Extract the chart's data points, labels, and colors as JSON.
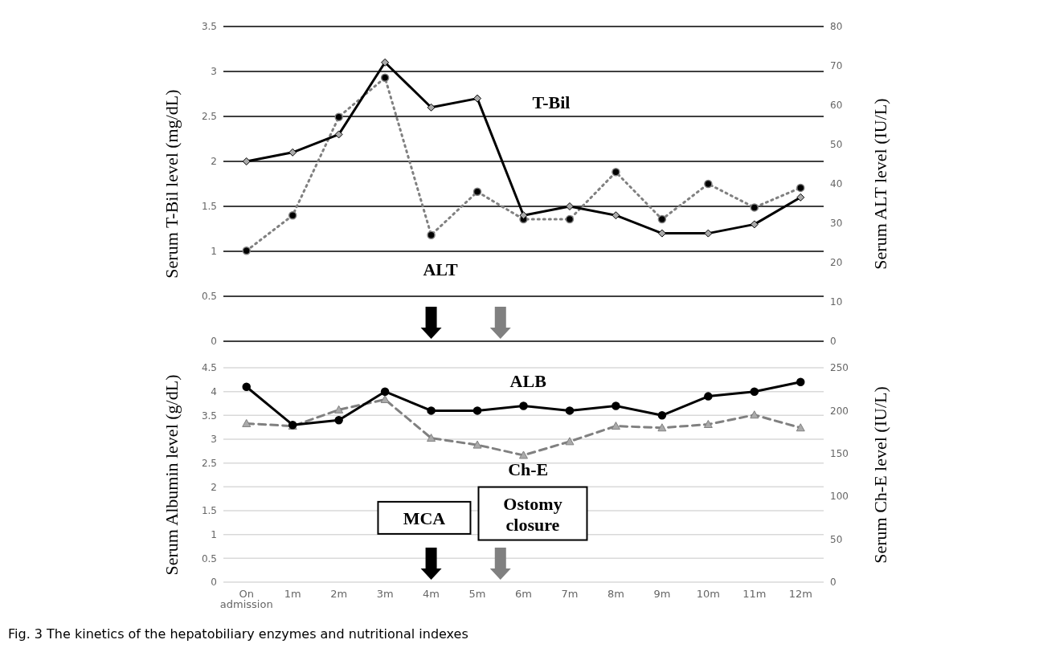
{
  "chart_data": [
    {
      "type": "line",
      "categories": [
        null,
        null,
        null,
        null,
        null,
        null,
        null,
        null,
        null,
        null,
        null,
        null,
        null
      ],
      "series": [
        {
          "name": "T-Bil",
          "color": "#000000",
          "marker": "diamond",
          "line_style": "solid",
          "values": [
            2,
            2.1,
            2.3,
            3.1,
            2.6,
            2.7,
            1.4,
            1.5,
            1.4,
            1.2,
            1.2,
            1.3,
            1.6
          ]
        },
        {
          "name": "ALT",
          "color": "#808080",
          "marker": "circle",
          "line_style": "dotted",
          "axis": "y2",
          "values": [
            23,
            32,
            57,
            67,
            27,
            38,
            31,
            31,
            43,
            31,
            40,
            34,
            39
          ]
        }
      ],
      "ylabel": "Serum T-Bil level (mg/dL)",
      "y2label": "Serum ALT level (IU/L)",
      "ylim": [
        0,
        3.5
      ],
      "yticks": [
        0,
        0.5,
        1,
        1.5,
        2,
        2.5,
        3,
        3.5
      ],
      "y2lim": [
        0,
        80
      ],
      "y2ticks": [
        0,
        10,
        20,
        30,
        40,
        50,
        60,
        70,
        80
      ],
      "grid": "y",
      "tick_labels": "y"
    },
    {
      "type": "line",
      "categories": [
        "On admission",
        "1m",
        "2m",
        "3m",
        "4m",
        "5m",
        "6m",
        "7m",
        "8m",
        "9m",
        "10m",
        "11m",
        "12m"
      ],
      "series": [
        {
          "name": "ALB",
          "color": "#000000",
          "marker": "circle",
          "line_style": "solid",
          "values": [
            4.1,
            3.3,
            3.4,
            4.0,
            3.6,
            3.6,
            3.7,
            3.6,
            3.7,
            3.5,
            3.9,
            4.0,
            4.2
          ]
        },
        {
          "name": "Ch-E",
          "color": "#808080",
          "marker": "triangle",
          "line_style": "dashed",
          "axis": "y2",
          "values": [
            185,
            182,
            201,
            213,
            168,
            160,
            148,
            164,
            182,
            180,
            184,
            195,
            180
          ]
        }
      ],
      "ylabel": "Serum Albumin level (g/dL)",
      "y2label": "Serum Ch-E level (IU/L)",
      "ylim": [
        0,
        4.5
      ],
      "yticks": [
        0,
        0.5,
        1,
        1.5,
        2,
        2.5,
        3,
        3.5,
        4,
        4.5
      ],
      "y2lim": [
        0,
        250
      ],
      "y2ticks": [
        0,
        50,
        100,
        150,
        200,
        250
      ],
      "grid": "y",
      "annotations": [
        "MCA",
        "Ostomy closure",
        "Fig. 3 The kinetics of the hepatobiliary enzymes and nutritional indexes"
      ]
    }
  ]
}
